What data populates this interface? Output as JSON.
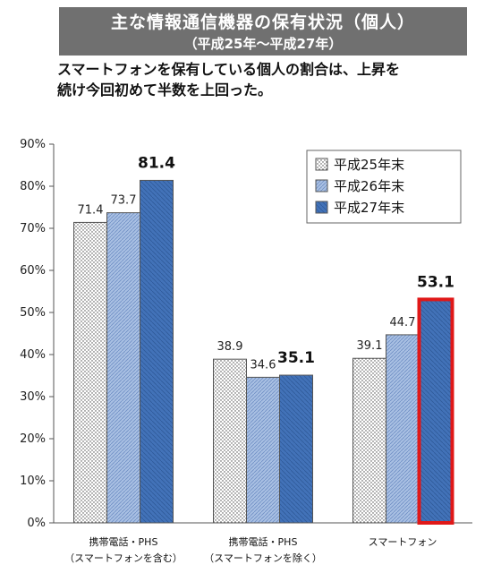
{
  "header": {
    "title": "主な情報通信機器の保有状況（個人）",
    "period": "（平成25年～平成27年）"
  },
  "subtitle": {
    "line1": "スマートフォンを保有している個人の割合は、上昇を",
    "line2": "続け今回初めて半数を上回った。"
  },
  "chart_data": {
    "type": "bar",
    "categories": [
      [
        "携帯電話・PHS",
        "（スマートフォンを含む）"
      ],
      [
        "携帯電話・PHS",
        "（スマートフォンを除く）"
      ],
      [
        "スマートフォン",
        ""
      ]
    ],
    "series": [
      {
        "name": "平成25年末",
        "values": [
          71.4,
          38.9,
          39.1
        ],
        "pattern": "dots",
        "color": "#ffffff"
      },
      {
        "name": "平成26年末",
        "values": [
          73.7,
          34.6,
          44.7
        ],
        "pattern": "hatch",
        "color": "#9bb5de"
      },
      {
        "name": "平成27年末",
        "values": [
          81.4,
          35.1,
          53.1
        ],
        "pattern": "solid",
        "color": "#3f6fb5"
      }
    ],
    "emphasized_labels": [
      {
        "series": 2,
        "category": 0,
        "color": "#111111"
      },
      {
        "series": 2,
        "category": 1,
        "color": "#111111"
      },
      {
        "series": 2,
        "category": 2,
        "color": "#e02020"
      }
    ],
    "highlight": {
      "series": 2,
      "category": 2,
      "border_color": "#e01818"
    },
    "yaxis_ticks": [
      "0%",
      "10%",
      "20%",
      "30%",
      "40%",
      "50%",
      "60%",
      "70%",
      "80%",
      "90%"
    ],
    "ylim": [
      0,
      90
    ],
    "legend_position": "top-right",
    "grid": false
  }
}
